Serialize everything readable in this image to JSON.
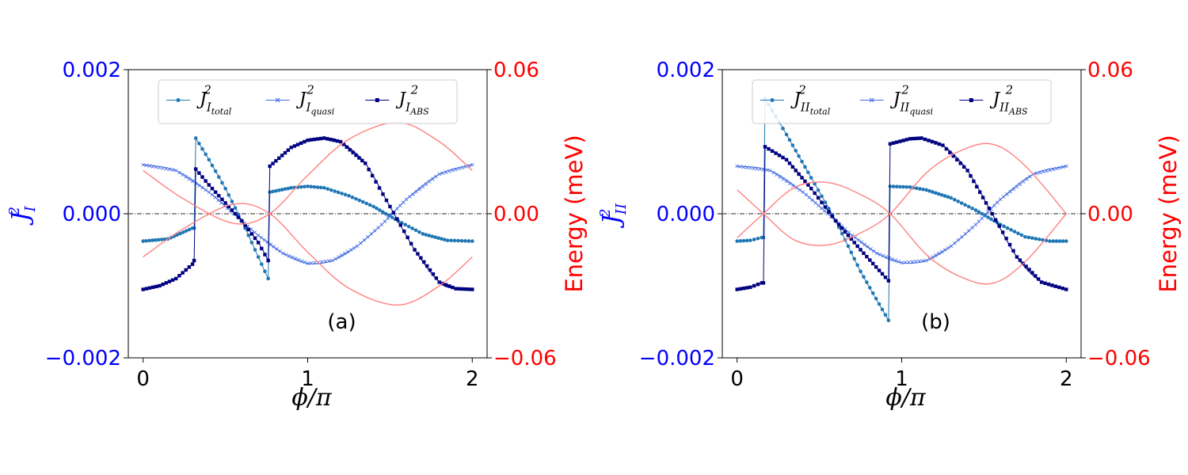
{
  "chart_data": [
    {
      "type": "line",
      "panel_label": "(a)",
      "xlabel": "ϕ/π",
      "ylabel_left": {
        "base": "J",
        "sup": "2",
        "sub": "I"
      },
      "ylabel_right": "Energy (meV)",
      "xlim": [
        -0.09,
        2.09
      ],
      "ylim_left": [
        -0.002,
        0.002
      ],
      "ylim_right": [
        -0.06,
        0.06
      ],
      "xticks": [
        0,
        1,
        2
      ],
      "xtick_labels": [
        "0",
        "1",
        "2"
      ],
      "yticks_left_labels": [
        "−0.002",
        "0.000",
        "0.002"
      ],
      "yticks_right_labels": [
        "−0.06",
        "0.00",
        "0.06"
      ],
      "legend_position": "top",
      "legend": [
        {
          "base": "J",
          "sup": "2",
          "sub1": "I",
          "sub2": "total"
        },
        {
          "base": "J",
          "sup": "2",
          "sub1": "I",
          "sub2": "quasi"
        },
        {
          "base": "J",
          "sup": "2",
          "sub1": "I",
          "sub2": "ABS"
        }
      ],
      "reference_line": {
        "y": 0
      },
      "series": [
        {
          "name_index": 0,
          "marker": "circle",
          "color": "#1f77b4",
          "axis": "left",
          "segments": [
            {
              "x": [
                0,
                0.15,
                0.3,
                0.31
              ],
              "y": [
                -0.00038,
                -0.00035,
                -0.0002,
                -0.0002
              ]
            },
            {
              "x": [
                0.32,
                0.4,
                0.5,
                0.6,
                0.7,
                0.76
              ],
              "y": [
                0.00105,
                0.00075,
                0.00035,
                -0.0001,
                -0.0006,
                -0.0009
              ]
            },
            {
              "x": [
                0.77,
                0.9,
                1.0,
                1.1,
                1.25,
                1.4,
                1.55,
                1.7,
                1.85,
                2.0
              ],
              "y": [
                0.0003,
                0.00036,
                0.00038,
                0.00036,
                0.00025,
                0.0001,
                -0.0001,
                -0.00028,
                -0.00037,
                -0.00038
              ]
            }
          ]
        },
        {
          "name_index": 1,
          "marker": "x",
          "color": "#4169e1",
          "axis": "left",
          "segments": [
            {
              "x": [
                0,
                0.2,
                0.4,
                0.55,
                0.7,
                0.85,
                1.0,
                1.15,
                1.3,
                1.45,
                1.6,
                1.8,
                2.0
              ],
              "y": [
                0.00068,
                0.0006,
                0.0003,
                0.0,
                -0.0003,
                -0.00055,
                -0.00069,
                -0.00065,
                -0.00045,
                -0.00015,
                0.0002,
                0.00055,
                0.00068
              ]
            }
          ]
        },
        {
          "name_index": 2,
          "marker": "square",
          "color": "#000080",
          "axis": "left",
          "segments": [
            {
              "x": [
                0,
                0.1,
                0.2,
                0.3,
                0.31
              ],
              "y": [
                -0.00105,
                -0.001,
                -0.0009,
                -0.0007,
                -0.00065
              ]
            },
            {
              "x": [
                0.32,
                0.4,
                0.5,
                0.6,
                0.7,
                0.76
              ],
              "y": [
                0.00062,
                0.0004,
                0.00015,
                -0.0001,
                -0.0004,
                -0.00065
              ]
            },
            {
              "x": [
                0.77,
                0.9,
                1.0,
                1.1,
                1.2,
                1.35,
                1.5,
                1.65,
                1.8,
                1.9,
                2.0
              ],
              "y": [
                0.00066,
                0.00092,
                0.00102,
                0.00105,
                0.001,
                0.0007,
                0.0001,
                -0.0005,
                -0.00095,
                -0.00104,
                -0.00105
              ]
            }
          ]
        },
        {
          "marker": "none",
          "color": "#ff8080",
          "axis": "right",
          "segments": [
            {
              "x": [
                0,
                0.25,
                0.55,
                0.77,
                1.0,
                1.25,
                1.55,
                1.8,
                2.0
              ],
              "y": [
                0.018,
                0.006,
                -0.004,
                0.0,
                0.016,
                0.031,
                0.038,
                0.03,
                0.018
              ]
            }
          ]
        },
        {
          "marker": "none",
          "color": "#ff8080",
          "axis": "right",
          "segments": [
            {
              "x": [
                0,
                0.25,
                0.55,
                0.77,
                1.0,
                1.25,
                1.55,
                1.8,
                2.0
              ],
              "y": [
                -0.018,
                -0.006,
                0.004,
                0.0,
                -0.016,
                -0.031,
                -0.038,
                -0.03,
                -0.018
              ]
            }
          ]
        }
      ]
    },
    {
      "type": "line",
      "panel_label": "(b)",
      "xlabel": "ϕ/π",
      "ylabel_left": {
        "base": "J",
        "sup": "2",
        "sub": "II"
      },
      "ylabel_right": "Energy (meV)",
      "xlim": [
        -0.09,
        2.09
      ],
      "ylim_left": [
        -0.002,
        0.002
      ],
      "ylim_right": [
        -0.06,
        0.06
      ],
      "xticks": [
        0,
        1,
        2
      ],
      "xtick_labels": [
        "0",
        "1",
        "2"
      ],
      "yticks_left_labels": [
        "−0.002",
        "0.000",
        "0.002"
      ],
      "yticks_right_labels": [
        "−0.06",
        "0.00",
        "0.06"
      ],
      "legend_position": "top",
      "legend": [
        {
          "base": "J",
          "sup": "2",
          "sub1": "II",
          "sub2": "total"
        },
        {
          "base": "J",
          "sup": "2",
          "sub1": "II",
          "sub2": "quasi"
        },
        {
          "base": "J",
          "sup": "2",
          "sub1": "II",
          "sub2": "ABS"
        }
      ],
      "reference_line": {
        "y": 0
      },
      "series": [
        {
          "name_index": 0,
          "marker": "circle",
          "color": "#1f77b4",
          "axis": "left",
          "segments": [
            {
              "x": [
                0,
                0.08,
                0.15,
                0.16
              ],
              "y": [
                -0.00038,
                -0.00037,
                -0.00033,
                -0.00033
              ]
            },
            {
              "x": [
                0.17,
                0.3,
                0.45,
                0.6,
                0.75,
                0.92
              ],
              "y": [
                0.0016,
                0.0011,
                0.0005,
                -0.0001,
                -0.0008,
                -0.00148
              ]
            },
            {
              "x": [
                0.93,
                1.05,
                1.15,
                1.3,
                1.45,
                1.6,
                1.75,
                1.9,
                2.0
              ],
              "y": [
                0.00038,
                0.00037,
                0.00033,
                0.00022,
                5e-05,
                -0.00015,
                -0.00032,
                -0.00038,
                -0.00038
              ]
            }
          ]
        },
        {
          "name_index": 1,
          "marker": "x",
          "color": "#4169e1",
          "axis": "left",
          "segments": [
            {
              "x": [
                0,
                0.2,
                0.4,
                0.55,
                0.7,
                0.85,
                1.0,
                1.15,
                1.3,
                1.45,
                1.6,
                1.8,
                2.0
              ],
              "y": [
                0.00066,
                0.0006,
                0.0003,
                0.0,
                -0.0003,
                -0.00055,
                -0.00068,
                -0.00065,
                -0.00045,
                -0.00015,
                0.0002,
                0.00055,
                0.00066
              ]
            }
          ]
        },
        {
          "name_index": 2,
          "marker": "square",
          "color": "#000080",
          "axis": "left",
          "segments": [
            {
              "x": [
                0,
                0.08,
                0.15,
                0.16
              ],
              "y": [
                -0.00105,
                -0.00102,
                -0.00096,
                -0.00096
              ]
            },
            {
              "x": [
                0.17,
                0.3,
                0.45,
                0.6,
                0.75,
                0.92
              ],
              "y": [
                0.00093,
                0.00075,
                0.00035,
                -0.0001,
                -0.0005,
                -0.00093
              ]
            },
            {
              "x": [
                0.93,
                1.05,
                1.12,
                1.25,
                1.4,
                1.55,
                1.7,
                1.85,
                2.0
              ],
              "y": [
                0.00097,
                0.00104,
                0.00105,
                0.00095,
                0.0006,
                0.0,
                -0.0006,
                -0.00095,
                -0.00105
              ]
            }
          ]
        },
        {
          "marker": "none",
          "color": "#ff8080",
          "axis": "right",
          "segments": [
            {
              "x": [
                0,
                0.16,
                0.35,
                0.55,
                0.75,
                0.93,
                1.15,
                1.35,
                1.55,
                1.75,
                2.0
              ],
              "y": [
                -0.01,
                0.0,
                0.011,
                0.013,
                0.008,
                0.0,
                -0.017,
                -0.026,
                -0.029,
                -0.02,
                0.0
              ]
            }
          ]
        },
        {
          "marker": "none",
          "color": "#ff8080",
          "axis": "right",
          "segments": [
            {
              "x": [
                0,
                0.16,
                0.35,
                0.55,
                0.75,
                0.93,
                1.15,
                1.35,
                1.55,
                1.75,
                2.0
              ],
              "y": [
                0.01,
                0.0,
                -0.011,
                -0.013,
                -0.008,
                0.0,
                0.017,
                0.026,
                0.029,
                0.02,
                0.0
              ]
            }
          ]
        }
      ]
    }
  ]
}
